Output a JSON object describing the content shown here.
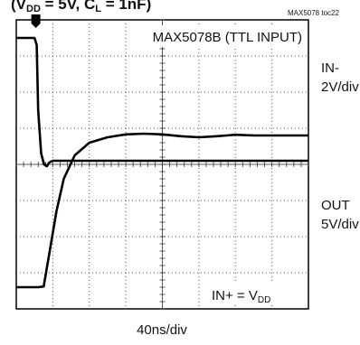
{
  "header": {
    "title_fragment": "(V",
    "title_sub": "DD",
    "title_rest": " = 5V, C",
    "title_sub2": "L",
    "title_rest2": " = 1nF)",
    "toc_id": "MAX5078 toc22"
  },
  "chart_data": {
    "type": "line",
    "title": "MAX5078B (TTL INPUT)",
    "x_scale_label": "40ns/div",
    "grid": {
      "x_divisions": 8,
      "y_divisions": 8,
      "style": "dotted"
    },
    "trigger_marker": "T",
    "note": {
      "text_main": "IN+ = V",
      "text_sub": "DD"
    },
    "series": [
      {
        "name": "IN-",
        "scale": "2V/div",
        "color": "#000000",
        "x": [
          0,
          0.3,
          0.5,
          0.56,
          0.6,
          0.68,
          0.76,
          0.84,
          0.9,
          1.0,
          1.2,
          2,
          3,
          4,
          5,
          6,
          7,
          8
        ],
        "y": [
          7.5,
          7.5,
          7.5,
          7.3,
          5.5,
          4.3,
          4.0,
          3.95,
          4.05,
          4.1,
          4.1,
          4.1,
          4.1,
          4.1,
          4.1,
          4.1,
          4.1,
          4.1
        ]
      },
      {
        "name": "OUT",
        "scale": "5V/div",
        "color": "#000000",
        "x": [
          0,
          0.6,
          0.75,
          0.9,
          1.1,
          1.3,
          1.6,
          2.0,
          2.5,
          3.0,
          3.5,
          4.0,
          4.5,
          5.0,
          5.5,
          6.0,
          6.5,
          7.0,
          7.5,
          8.0
        ],
        "y": [
          0.6,
          0.6,
          0.62,
          1.5,
          2.7,
          3.6,
          4.25,
          4.6,
          4.75,
          4.83,
          4.85,
          4.83,
          4.78,
          4.75,
          4.78,
          4.82,
          4.8,
          4.8,
          4.8,
          4.8
        ]
      }
    ]
  }
}
